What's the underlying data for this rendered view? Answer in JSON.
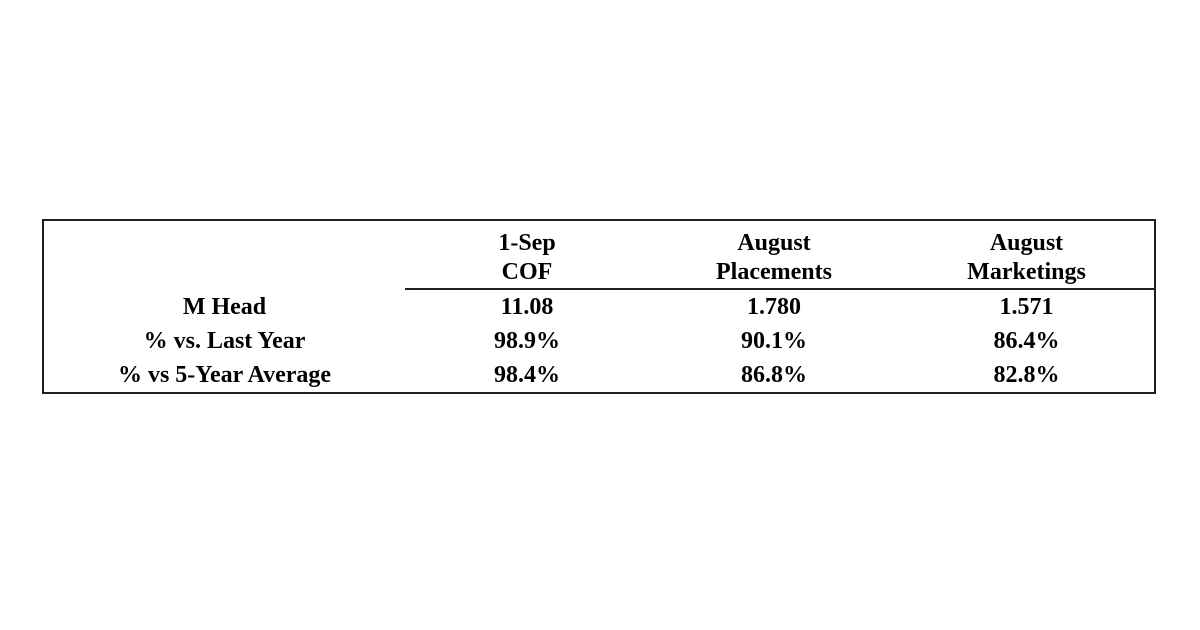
{
  "chart_data": {
    "type": "table",
    "columns": [
      "",
      "1-Sep COF",
      "August Placements",
      "August Marketings"
    ],
    "rows": [
      [
        "M Head",
        "11.08",
        "1.780",
        "1.571"
      ],
      [
        "% vs. Last Year",
        "98.9%",
        "90.1%",
        "86.4%"
      ],
      [
        "% vs 5-Year Average",
        "98.4%",
        "86.8%",
        "82.8%"
      ]
    ]
  },
  "header_display": {
    "col1": {
      "line1": "1-Sep",
      "line2": "COF"
    },
    "col2": {
      "line1": "August",
      "line2": "Placements"
    },
    "col3": {
      "line1": "August",
      "line2": "Marketings"
    }
  },
  "colors": {
    "text": "#000000",
    "border": "#1f1f1f",
    "background": "#ffffff"
  }
}
